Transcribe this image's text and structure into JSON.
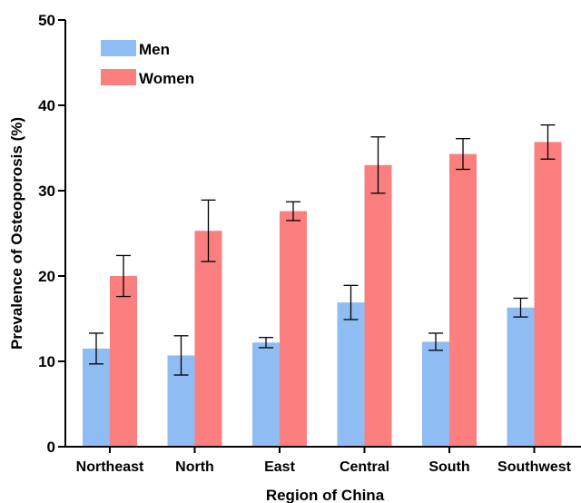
{
  "chart_data": {
    "type": "bar",
    "xlabel": "Region of China",
    "ylabel": "Prevalence of Osteoporosis (%)",
    "ylim": [
      0,
      50
    ],
    "yticks": [
      0,
      10,
      20,
      30,
      40,
      50
    ],
    "categories": [
      "Northeast",
      "North",
      "East",
      "Central",
      "South",
      "Southwest"
    ],
    "series": [
      {
        "name": "Men",
        "color": "#8fbcf2",
        "values": [
          11.5,
          10.7,
          12.2,
          16.9,
          12.3,
          16.3
        ],
        "error": [
          1.8,
          2.3,
          0.6,
          2.0,
          1.0,
          1.1
        ]
      },
      {
        "name": "Women",
        "color": "#fb7f7f",
        "values": [
          20.0,
          25.3,
          27.6,
          33.0,
          34.3,
          35.7
        ],
        "error": [
          2.4,
          3.6,
          1.1,
          3.3,
          1.8,
          2.0
        ]
      }
    ],
    "legend_position": "top-left",
    "grid": false
  }
}
